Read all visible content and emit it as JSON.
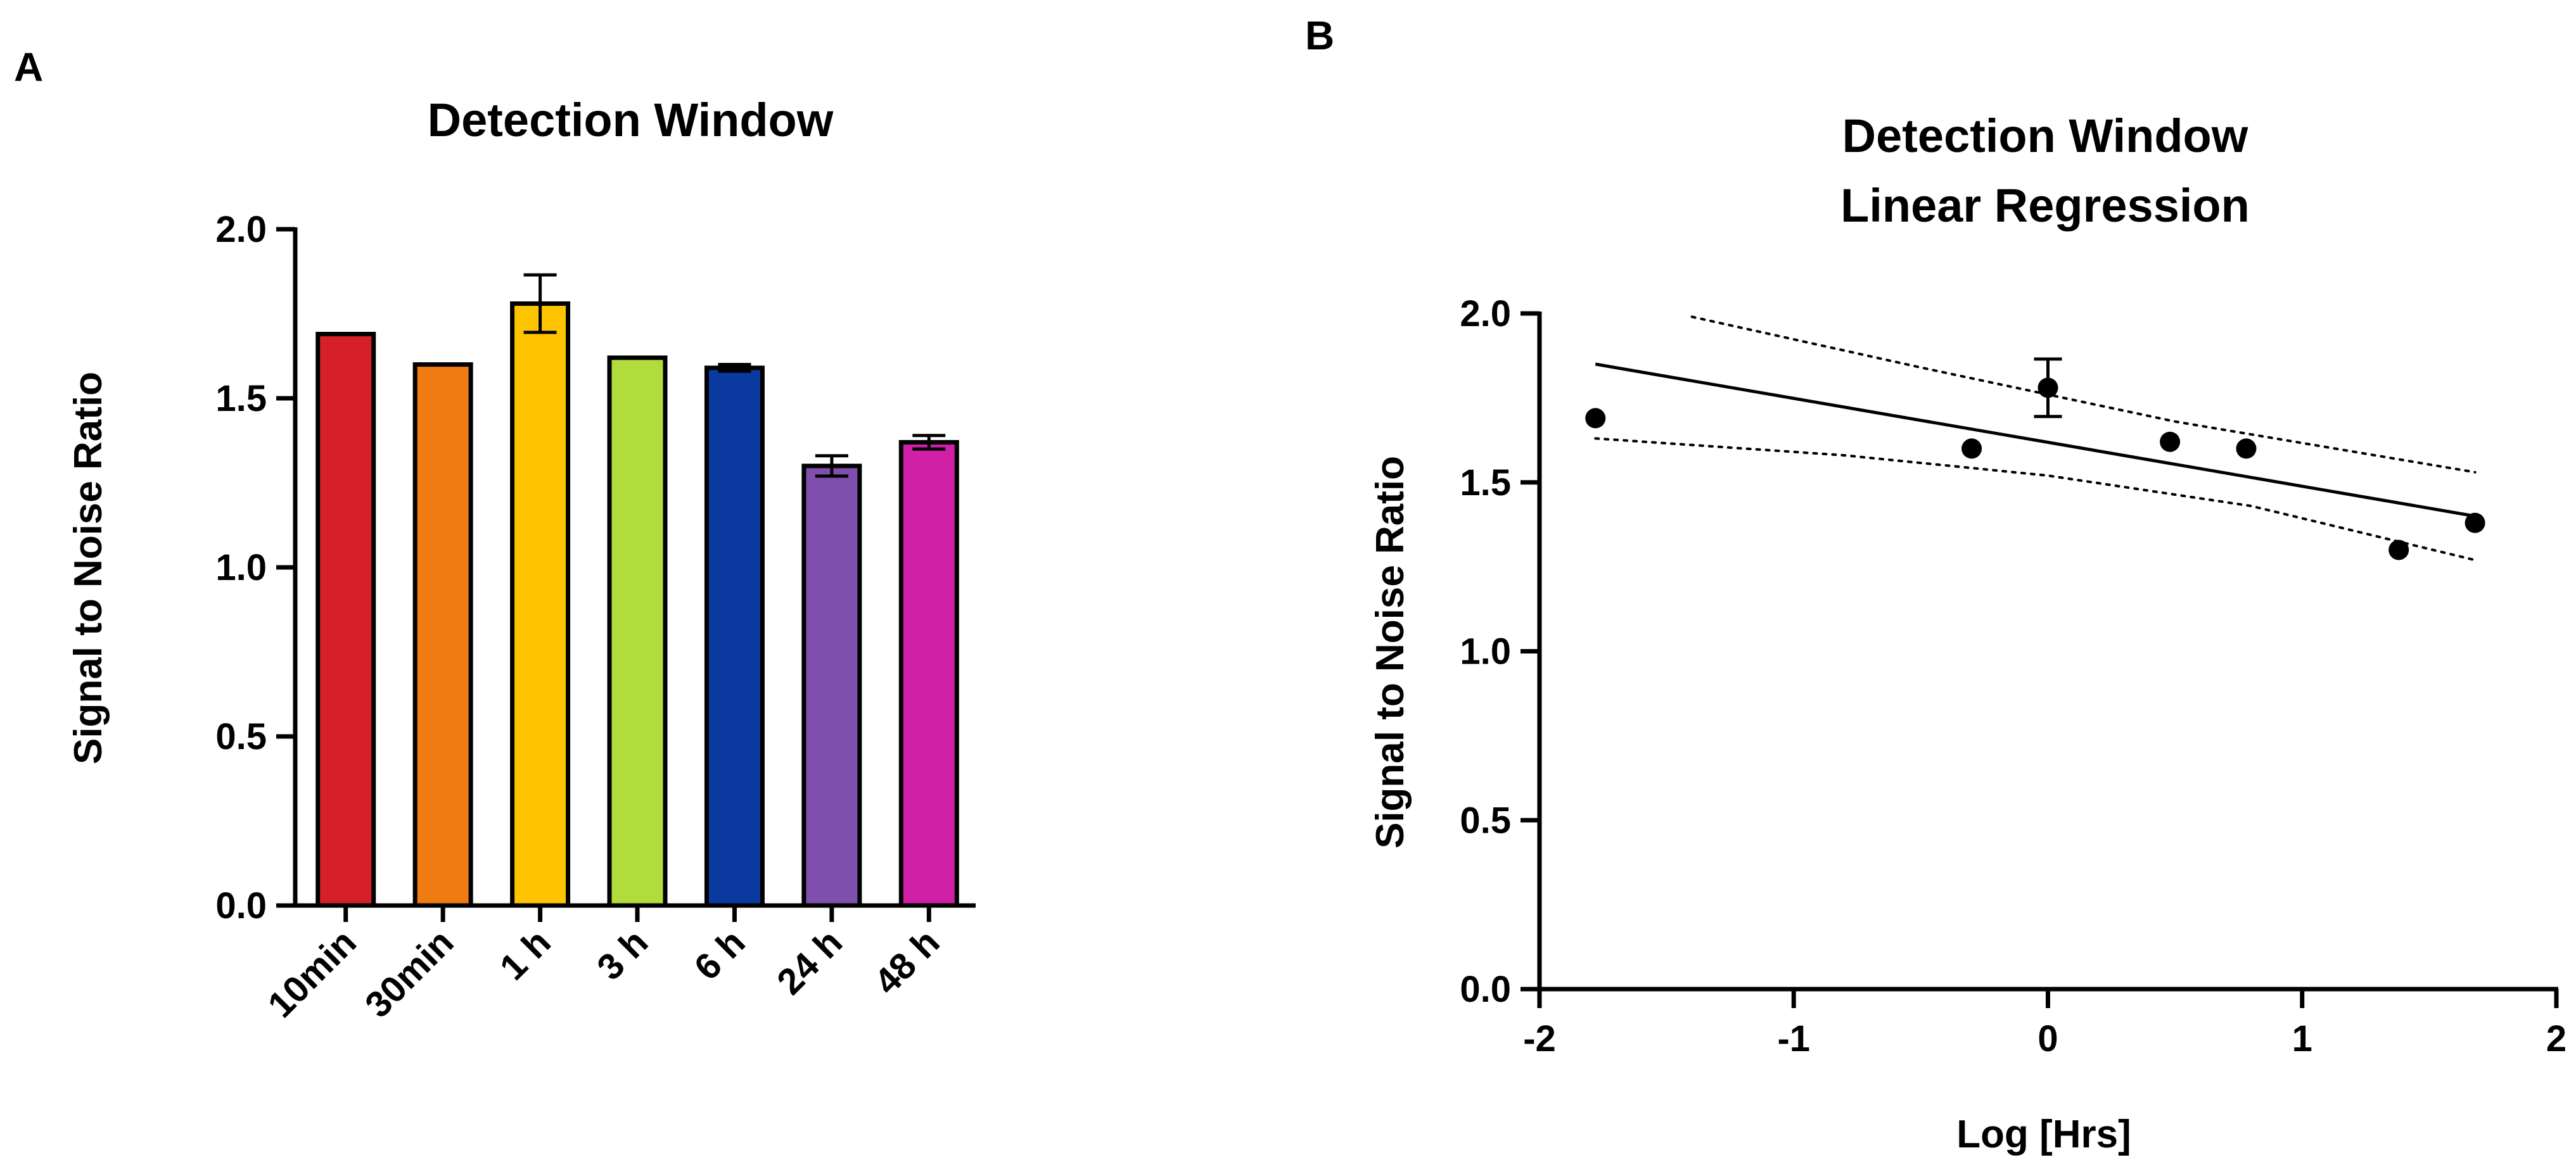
{
  "chart_data": [
    {
      "panel": "A",
      "type": "bar",
      "title": "Detection Window",
      "xlabel": "",
      "ylabel": "Signal to Noise Ratio",
      "ylim": [
        0,
        2.0
      ],
      "yticks": [
        0.0,
        0.5,
        1.0,
        1.5,
        2.0
      ],
      "ytick_labels": [
        "0.0",
        "0.5",
        "1.0",
        "1.5",
        "2.0"
      ],
      "categories": [
        "10min",
        "30min",
        "1 h",
        "3 h",
        "6 h",
        "24 h",
        "48 h"
      ],
      "values": [
        1.69,
        1.6,
        1.78,
        1.62,
        1.59,
        1.3,
        1.37
      ],
      "errors": [
        0,
        0,
        0.085,
        0,
        0.01,
        0.03,
        0.02
      ],
      "colors": [
        "#d62027",
        "#f07b12",
        "#ffc400",
        "#b2dc3c",
        "#0a3aa0",
        "#7f4fad",
        "#d020a6"
      ],
      "grid": false
    },
    {
      "panel": "B",
      "type": "scatter",
      "title_lines": [
        "Detection Window",
        "Linear Regression"
      ],
      "xlabel": "Log [Hrs]",
      "ylabel": "Signal to Noise Ratio",
      "xlim": [
        -2,
        2
      ],
      "ylim": [
        0,
        2.0
      ],
      "xticks": [
        -2,
        -1,
        0,
        1,
        2
      ],
      "xtick_labels": [
        "-2",
        "-1",
        "0",
        "1",
        "2"
      ],
      "yticks": [
        0.0,
        0.5,
        1.0,
        1.5,
        2.0
      ],
      "ytick_labels": [
        "0.0",
        "0.5",
        "1.0",
        "1.5",
        "2.0"
      ],
      "x": [
        -1.78,
        -0.3,
        0.0,
        0.48,
        0.78,
        1.38,
        1.68
      ],
      "y": [
        1.69,
        1.6,
        1.78,
        1.62,
        1.6,
        1.3,
        1.38
      ],
      "errors": [
        0,
        0,
        0.085,
        0,
        0,
        0,
        0
      ],
      "regression": {
        "x": [
          -1.78,
          1.68
        ],
        "y": [
          1.85,
          1.4
        ]
      },
      "ci_upper": {
        "x": [
          -1.4,
          -0.5,
          0.5,
          1.68
        ],
        "y": [
          1.99,
          1.84,
          1.68,
          1.53
        ]
      },
      "ci_lower": {
        "x": [
          -1.78,
          -0.8,
          0.0,
          0.8,
          1.68
        ],
        "y": [
          1.63,
          1.58,
          1.52,
          1.43,
          1.27
        ]
      },
      "grid": false
    }
  ]
}
